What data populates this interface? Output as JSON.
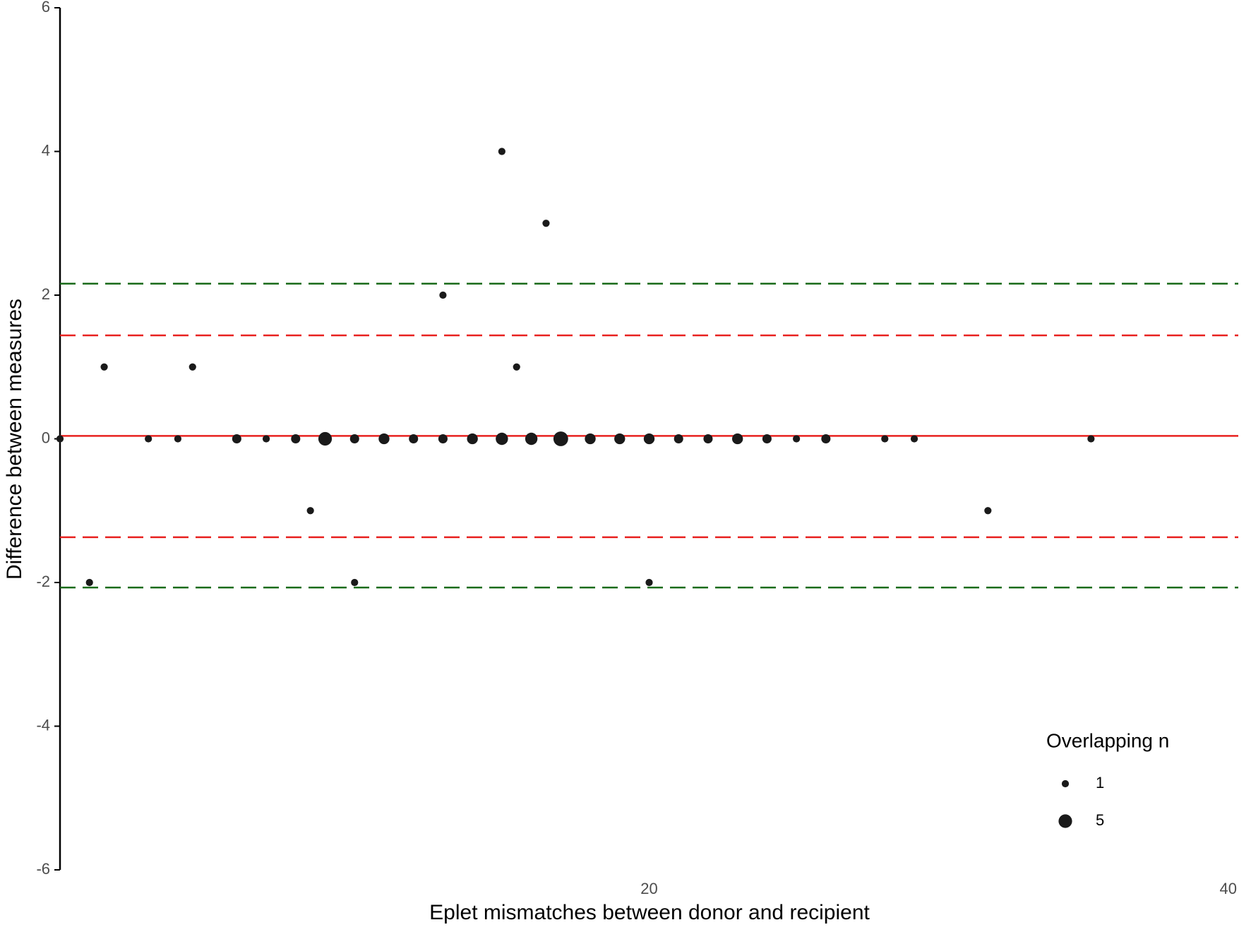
{
  "chart_data": {
    "type": "scatter",
    "x_label": "Eplet mismatches between donor and recipient",
    "y_label": "Difference between measures",
    "x": [
      0,
      3,
      4,
      6,
      7,
      8,
      9,
      10,
      11,
      12,
      13,
      14,
      15,
      16,
      17,
      18,
      19,
      20,
      21,
      22,
      23,
      24,
      25,
      26,
      28,
      29,
      35,
      1,
      1.5,
      4.5,
      8.5,
      10,
      13,
      15,
      15.5,
      16.5,
      20,
      31.5
    ],
    "y": [
      0,
      0,
      0,
      0,
      0,
      0,
      0,
      0,
      0,
      0,
      0,
      0,
      0,
      0,
      0,
      0,
      0,
      0,
      0,
      0,
      0,
      0,
      0,
      0,
      0,
      0,
      0,
      -2,
      1,
      1,
      -1,
      -2,
      2,
      4,
      1,
      3,
      -2,
      -1
    ],
    "sizes": [
      1,
      1,
      1,
      2,
      1,
      2,
      5,
      2,
      3,
      2,
      2,
      3,
      4,
      4,
      6,
      3,
      3,
      3,
      2,
      2,
      3,
      2,
      1,
      2,
      1,
      1,
      1,
      1,
      1,
      1,
      1,
      1,
      1,
      1,
      1,
      1,
      1,
      1
    ],
    "color": "#1a1a1a",
    "xlim": [
      0,
      40
    ],
    "xticks": [
      20,
      40
    ],
    "ylim": [
      -6,
      6
    ],
    "yticks": [
      -6,
      -4,
      -2,
      0,
      2,
      4,
      6
    ],
    "hlines": [
      {
        "value": 0.04,
        "color": "#e8211f",
        "style": "solid"
      },
      {
        "value": 1.44,
        "color": "#e8211f",
        "style": "dashed"
      },
      {
        "value": -1.37,
        "color": "#e8211f",
        "style": "dashed"
      },
      {
        "value": 2.16,
        "color": "#1a6b1a",
        "style": "dashed"
      },
      {
        "value": -2.07,
        "color": "#1a6b1a",
        "style": "dashed"
      }
    ],
    "size_legend": {
      "title": "Overlapping n",
      "values": [
        1,
        5
      ]
    },
    "legend_position": "lower-right"
  }
}
